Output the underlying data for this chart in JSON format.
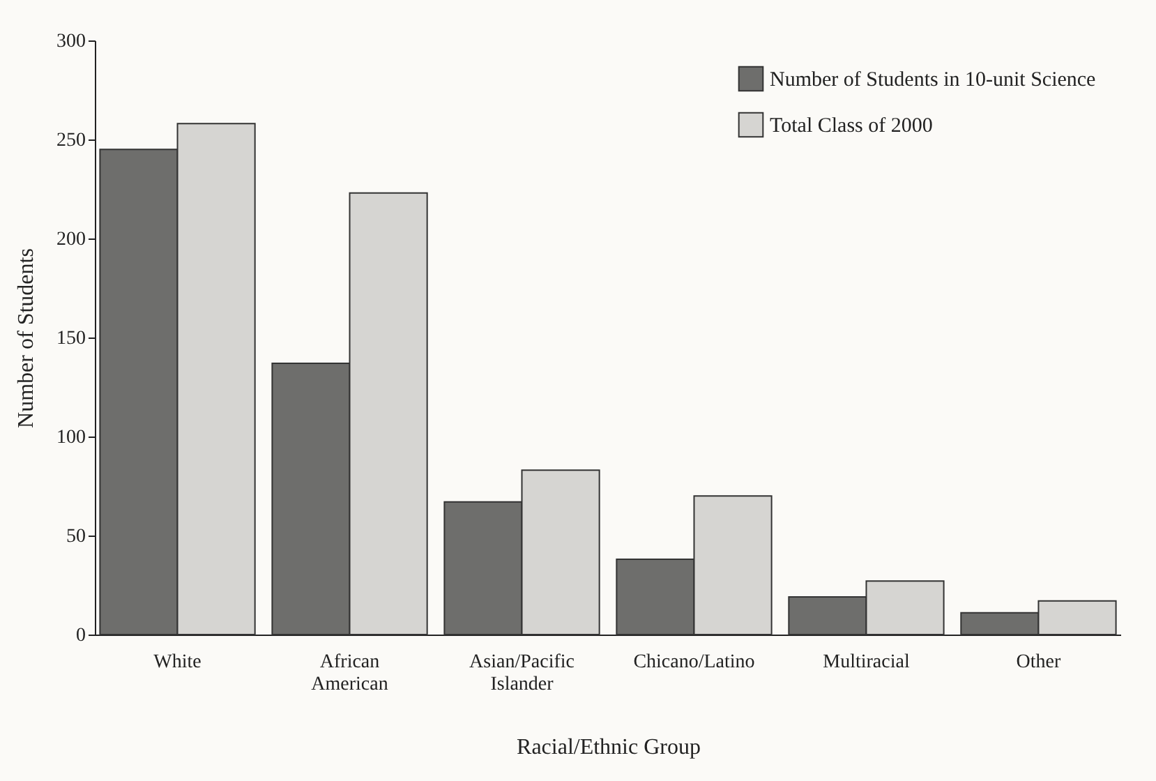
{
  "chart_data": {
    "type": "bar",
    "xlabel": "Racial/Ethnic Group",
    "ylabel": "Number of Students",
    "categories": [
      "White",
      "African American",
      "Asian/Pacific Islander",
      "Chicano/Latino",
      "Multiracial",
      "Other"
    ],
    "series": [
      {
        "name": "Number of Students in 10-unit Science",
        "color": "#6e6e6c",
        "values": [
          245,
          137,
          67,
          38,
          19,
          11
        ]
      },
      {
        "name": "Total Class of 2000",
        "color": "#d6d5d2",
        "values": [
          258,
          223,
          83,
          70,
          27,
          17
        ]
      }
    ],
    "ylim": [
      0,
      300
    ],
    "yticks": [
      0,
      50,
      100,
      150,
      200,
      250,
      300
    ],
    "grid": false,
    "legend": "top right"
  }
}
